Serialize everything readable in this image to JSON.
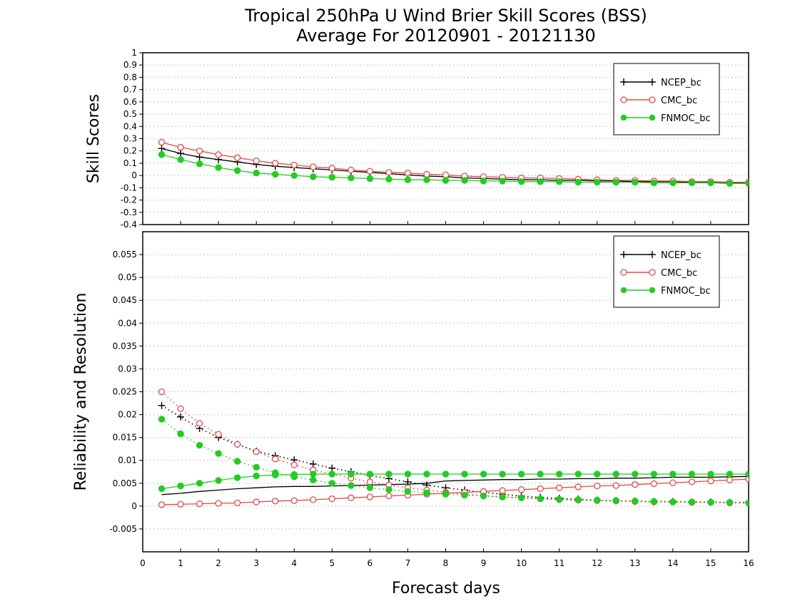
{
  "title": "Tropical 250hPa U Wind Brier Skill Scores (BSS)",
  "subtitle": "Average For 20120901 - 20121130",
  "xlabel": "Forecast days",
  "colors": {
    "NCEP_bc": "#000000",
    "CMC_bc": "#e04a4a",
    "FNMOC_bc": "#22cc22"
  },
  "chart_data": [
    {
      "type": "line",
      "panel": "top",
      "ylabel": "Skill Scores",
      "xlim": [
        0,
        16
      ],
      "ylim": [
        -0.4,
        1
      ],
      "xticks": [
        "0",
        "1",
        "2",
        "3",
        "4",
        "5",
        "6",
        "7",
        "8",
        "9",
        "10",
        "11",
        "12",
        "13",
        "14",
        "15",
        "16"
      ],
      "yticks": [
        "1",
        "0.9",
        "0.8",
        "0.7",
        "0.6",
        "0.5",
        "0.4",
        "0.3",
        "0.2",
        "0.1",
        "0",
        "-0.1",
        "-0.2",
        "-0.3",
        "-0.4"
      ],
      "grid": true,
      "legend": "top-right",
      "x": [
        0.5,
        1,
        1.5,
        2,
        2.5,
        3,
        3.5,
        4,
        4.5,
        5,
        5.5,
        6,
        6.5,
        7,
        7.5,
        8,
        8.5,
        9,
        9.5,
        10,
        10.5,
        11,
        11.5,
        12,
        12.5,
        13,
        13.5,
        14,
        14.5,
        15,
        15.5,
        16
      ],
      "series": [
        {
          "name": "NCEP_bc",
          "marker": "plus",
          "line": "solid",
          "values": [
            0.22,
            0.18,
            0.15,
            0.13,
            0.11,
            0.09,
            0.075,
            0.065,
            0.055,
            0.045,
            0.035,
            0.025,
            0.015,
            0.005,
            -0.005,
            -0.01,
            -0.02,
            -0.025,
            -0.03,
            -0.035,
            -0.035,
            -0.04,
            -0.04,
            -0.045,
            -0.045,
            -0.05,
            -0.05,
            -0.05,
            -0.055,
            -0.055,
            -0.06,
            -0.06
          ]
        },
        {
          "name": "CMC_bc",
          "marker": "open-circle",
          "line": "solid",
          "values": [
            0.27,
            0.23,
            0.2,
            0.17,
            0.145,
            0.12,
            0.1,
            0.085,
            0.07,
            0.06,
            0.045,
            0.035,
            0.025,
            0.02,
            0.01,
            0.005,
            -0.005,
            -0.01,
            -0.015,
            -0.02,
            -0.02,
            -0.025,
            -0.03,
            -0.035,
            -0.04,
            -0.04,
            -0.045,
            -0.045,
            -0.05,
            -0.05,
            -0.055,
            -0.055
          ]
        },
        {
          "name": "FNMOC_bc",
          "marker": "filled-circle",
          "line": "solid",
          "values": [
            0.17,
            0.13,
            0.095,
            0.065,
            0.04,
            0.02,
            0.01,
            0,
            -0.01,
            -0.015,
            -0.02,
            -0.025,
            -0.03,
            -0.035,
            -0.035,
            -0.04,
            -0.04,
            -0.045,
            -0.045,
            -0.05,
            -0.05,
            -0.05,
            -0.055,
            -0.055,
            -0.055,
            -0.055,
            -0.06,
            -0.06,
            -0.06,
            -0.06,
            -0.065,
            -0.065
          ]
        }
      ]
    },
    {
      "type": "line",
      "panel": "bottom",
      "ylabel": "Reliability and Resolution",
      "xlim": [
        0,
        16
      ],
      "ylim": [
        -0.01,
        0.06
      ],
      "xticks": [
        "0",
        "1",
        "2",
        "3",
        "4",
        "5",
        "6",
        "7",
        "8",
        "9",
        "10",
        "11",
        "12",
        "13",
        "14",
        "15",
        "16"
      ],
      "yticks": [
        "0.055",
        "0.05",
        "0.045",
        "0.04",
        "0.035",
        "0.03",
        "0.025",
        "0.02",
        "0.015",
        "0.01",
        "0.005",
        "0",
        "-0.005"
      ],
      "grid": true,
      "legend": "top-right",
      "x": [
        0.5,
        1,
        1.5,
        2,
        2.5,
        3,
        3.5,
        4,
        4.5,
        5,
        5.5,
        6,
        6.5,
        7,
        7.5,
        8,
        8.5,
        9,
        9.5,
        10,
        10.5,
        11,
        11.5,
        12,
        12.5,
        13,
        13.5,
        14,
        14.5,
        15,
        15.5,
        16
      ],
      "series": [
        {
          "name": "NCEP_bc",
          "metric": "reliability",
          "marker": "plus",
          "line": "dotted",
          "values": [
            0.022,
            0.0195,
            0.017,
            0.015,
            0.0135,
            0.012,
            0.011,
            0.0101,
            0.0092,
            0.0083,
            0.0075,
            0.0067,
            0.006,
            0.0053,
            0.0046,
            0.004,
            0.0035,
            0.003,
            0.0026,
            0.0022,
            0.0019,
            0.0017,
            0.0015,
            0.0013,
            0.0012,
            0.0011,
            0.001,
            0.001,
            0.0009,
            0.0009,
            0.0008,
            0.0008
          ]
        },
        {
          "name": "NCEP_bc",
          "metric": "resolution",
          "marker": "none",
          "line": "solid",
          "values": [
            0.0025,
            0.0028,
            0.0032,
            0.0035,
            0.0038,
            0.004,
            0.0042,
            0.0043,
            0.0043,
            0.0044,
            0.0045,
            0.0046,
            0.0047,
            0.0048,
            0.005,
            0.0055,
            0.0056,
            0.0057,
            0.0058,
            0.0058,
            0.0059,
            0.0059,
            0.006,
            0.006,
            0.0061,
            0.0061,
            0.0062,
            0.0063,
            0.0063,
            0.0063,
            0.0064,
            0.0065
          ]
        },
        {
          "name": "CMC_bc",
          "metric": "reliability",
          "marker": "open-circle",
          "line": "dotted",
          "values": [
            0.025,
            0.0213,
            0.0181,
            0.0157,
            0.0135,
            0.0119,
            0.0103,
            0.009,
            0.0079,
            0.007,
            0.0061,
            0.0053,
            0.0046,
            0.004,
            0.0035,
            0.003,
            0.0026,
            0.0023,
            0.002,
            0.0018,
            0.0016,
            0.0014,
            0.0013,
            0.0012,
            0.0011,
            0.001,
            0.0009,
            0.0009,
            0.0008,
            0.0008,
            0.0007,
            0.0007
          ]
        },
        {
          "name": "CMC_bc",
          "metric": "resolution",
          "marker": "open-circle",
          "line": "solid",
          "values": [
            0.0003,
            0.0004,
            0.0005,
            0.0006,
            0.0007,
            0.0009,
            0.0011,
            0.0012,
            0.0014,
            0.0016,
            0.0018,
            0.002,
            0.0022,
            0.0024,
            0.0026,
            0.0028,
            0.003,
            0.0032,
            0.0034,
            0.0036,
            0.0038,
            0.004,
            0.0042,
            0.0044,
            0.0045,
            0.0047,
            0.0049,
            0.0051,
            0.0053,
            0.0055,
            0.0057,
            0.0059
          ]
        },
        {
          "name": "FNMOC_bc",
          "metric": "reliability",
          "marker": "filled-circle",
          "line": "dotted",
          "values": [
            0.019,
            0.0158,
            0.0133,
            0.0115,
            0.0098,
            0.0085,
            0.0073,
            0.0064,
            0.0057,
            0.005,
            0.0045,
            0.004,
            0.0036,
            0.0032,
            0.0029,
            0.0026,
            0.0024,
            0.0022,
            0.002,
            0.0018,
            0.0016,
            0.0015,
            0.0014,
            0.0013,
            0.0012,
            0.0011,
            0.001,
            0.0009,
            0.0009,
            0.0008,
            0.0008,
            0.0007
          ]
        },
        {
          "name": "FNMOC_bc",
          "metric": "resolution",
          "marker": "filled-circle",
          "line": "solid",
          "values": [
            0.0038,
            0.0044,
            0.005,
            0.0056,
            0.0062,
            0.0066,
            0.0068,
            0.0069,
            0.007,
            0.007,
            0.007,
            0.007,
            0.007,
            0.007,
            0.007,
            0.007,
            0.007,
            0.007,
            0.007,
            0.007,
            0.007,
            0.007,
            0.007,
            0.007,
            0.007,
            0.007,
            0.007,
            0.007,
            0.007,
            0.007,
            0.007,
            0.007
          ]
        }
      ]
    }
  ]
}
